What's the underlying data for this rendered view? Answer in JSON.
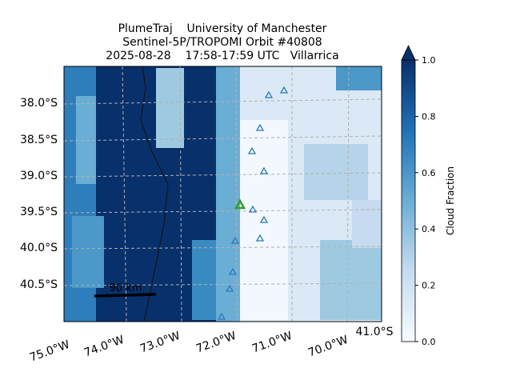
{
  "title": {
    "lines": [
      "PlumeTraj    University of Manchester",
      "Sentinel-5P/TROPOMI Orbit #40808",
      "2025-08-28    17:58-17:59 UTC   Villarrica"
    ]
  },
  "map": {
    "lat_labels": [
      "38.0°S",
      "38.5°S",
      "39.0°S",
      "39.5°S",
      "40.0°S",
      "40.5°S"
    ],
    "lon_labels": [
      "75.0°W",
      "74.0°W",
      "73.0°W",
      "72.0°W",
      "71.0°W",
      "70.0°W"
    ],
    "corner_label": "41.0°S",
    "scale_bar": "90 km"
  },
  "colorbar": {
    "label": "Cloud Fraction",
    "range": [
      0,
      1
    ],
    "ticks": [
      {
        "value": 0,
        "label": "0.0"
      },
      {
        "value": 0.2,
        "label": "0.2"
      },
      {
        "value": 0.4,
        "label": "0.4"
      },
      {
        "value": 0.6,
        "label": "0.6"
      },
      {
        "value": 0.8,
        "label": "0.8"
      },
      {
        "value": 1,
        "label": "1.0"
      }
    ]
  }
}
